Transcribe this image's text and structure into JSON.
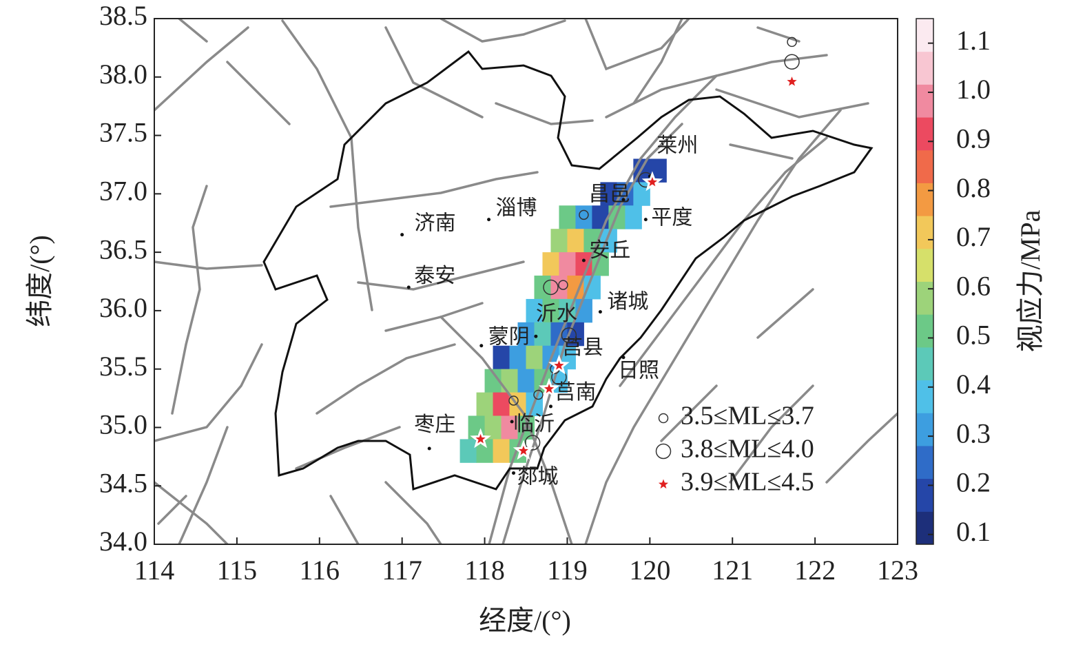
{
  "chart_data": {
    "type": "map",
    "x_label": "经度/(°)",
    "y_label": "纬度/(°)",
    "colorbar_label": "视应力/MPa",
    "xlim": [
      114,
      123
    ],
    "xticks": [
      114,
      115,
      116,
      117,
      118,
      119,
      120,
      121,
      122,
      123
    ],
    "ylim": [
      34,
      38.5
    ],
    "yticks": [
      {
        "value": 34,
        "label": "34.0"
      },
      34.5,
      {
        "value": 35,
        "label": "35.0"
      },
      35.5,
      {
        "value": 36,
        "label": "36.0"
      },
      36.5,
      {
        "value": 37,
        "label": "37.0"
      },
      37.5,
      {
        "value": 38,
        "label": "38.0"
      },
      38.5
    ],
    "colorbar_lim": [
      0.08,
      1.15
    ],
    "colorbar_ticks": [
      0.1,
      0.2,
      0.3,
      0.4,
      0.5,
      0.6,
      0.7,
      0.8,
      0.9,
      {
        "value": 1,
        "label": "1.0"
      },
      1.1
    ],
    "colors": [
      "#1d2f7a",
      "#2546a8",
      "#2f6cc8",
      "#3d9ee0",
      "#4fc0e8",
      "#5cc9b8",
      "#6cc987",
      "#9dd37a",
      "#d6e06a",
      "#f2c85a",
      "#f39a42",
      "#f06a4a",
      "#ec4a60",
      "#f08aa0",
      "#f8c6d2",
      "#fbeaf0"
    ],
    "cells": [
      {
        "lat": 37.2,
        "lons": [
          119.9,
          120.1
        ],
        "values": [
          0.2,
          0.2
        ]
      },
      {
        "lat": 37.0,
        "lons": [
          119.5,
          119.7,
          119.9
        ],
        "values": [
          0.2,
          0.25,
          0.4
        ]
      },
      {
        "lat": 36.8,
        "lons": [
          119.0,
          119.2,
          119.4,
          119.6,
          119.8
        ],
        "values": [
          0.5,
          0.3,
          0.2,
          0.5,
          0.4
        ]
      },
      {
        "lat": 36.6,
        "lons": [
          118.9,
          119.1,
          119.3,
          119.5
        ],
        "values": [
          0.6,
          0.7,
          0.5,
          0.4
        ]
      },
      {
        "lat": 36.4,
        "lons": [
          118.8,
          119.0,
          119.2,
          119.4
        ],
        "values": [
          0.7,
          1.0,
          0.9,
          0.5
        ]
      },
      {
        "lat": 36.2,
        "lons": [
          118.7,
          118.9,
          119.1,
          119.3
        ],
        "values": [
          0.5,
          1.0,
          0.8,
          0.4
        ]
      },
      {
        "lat": 36.0,
        "lons": [
          118.6,
          118.8,
          119.0,
          119.2
        ],
        "values": [
          0.4,
          0.5,
          0.45,
          0.3
        ]
      },
      {
        "lat": 35.8,
        "lons": [
          118.5,
          118.7,
          118.9,
          119.1
        ],
        "values": [
          0.3,
          0.45,
          0.25,
          0.2
        ]
      },
      {
        "lat": 35.6,
        "lons": [
          118.2,
          118.4,
          118.6,
          118.8,
          119.0
        ],
        "values": [
          0.2,
          0.3,
          0.6,
          0.3,
          0.4
        ]
      },
      {
        "lat": 35.4,
        "lons": [
          118.1,
          118.3,
          118.5,
          118.7,
          118.9
        ],
        "values": [
          0.5,
          0.6,
          0.3,
          0.5,
          0.4
        ]
      },
      {
        "lat": 35.2,
        "lons": [
          118.0,
          118.2,
          118.4,
          118.6
        ],
        "values": [
          0.6,
          0.9,
          0.7,
          0.4
        ]
      },
      {
        "lat": 35.0,
        "lons": [
          117.9,
          118.1,
          118.3,
          118.5
        ],
        "values": [
          0.5,
          0.6,
          1.0,
          0.5
        ]
      },
      {
        "lat": 34.8,
        "lons": [
          117.8,
          118.0,
          118.2,
          118.4
        ],
        "values": [
          0.45,
          0.5,
          0.7,
          0.5
        ]
      }
    ],
    "cities": [
      {
        "name": "莱州",
        "lon": 120.0,
        "lat": 37.15
      },
      {
        "name": "昌邑",
        "lon": 119.68,
        "lat": 36.95
      },
      {
        "name": "平度",
        "lon": 119.95,
        "lat": 36.78
      },
      {
        "name": "淄博",
        "lon": 118.05,
        "lat": 36.78
      },
      {
        "name": "济南",
        "lon": 117.0,
        "lat": 36.65
      },
      {
        "name": "泰安",
        "lon": 117.08,
        "lat": 36.2
      },
      {
        "name": "安丘",
        "lon": 119.2,
        "lat": 36.43
      },
      {
        "name": "诸城",
        "lon": 119.4,
        "lat": 35.99
      },
      {
        "name": "沂水",
        "lon": 118.62,
        "lat": 35.78
      },
      {
        "name": "蒙阴",
        "lon": 117.96,
        "lat": 35.7
      },
      {
        "name": "莒县",
        "lon": 118.87,
        "lat": 35.55
      },
      {
        "name": "日照",
        "lon": 119.68,
        "lat": 35.6
      },
      {
        "name": "莒南",
        "lon": 118.8,
        "lat": 35.18
      },
      {
        "name": "临沂",
        "lon": 118.33,
        "lat": 35.05
      },
      {
        "name": "枣庄",
        "lon": 117.33,
        "lat": 34.82
      },
      {
        "name": "郯城",
        "lon": 118.35,
        "lat": 34.61
      }
    ],
    "series": [
      {
        "name": "3.5≤ML≤3.7",
        "marker": "small-circle",
        "lon": [
          119.2,
          118.95,
          118.65,
          118.85,
          117.95,
          118.35,
          121.72
        ],
        "lat": [
          36.82,
          36.22,
          35.28,
          35.5,
          34.9,
          35.23,
          38.3
        ]
      },
      {
        "name": "3.8≤ML≤4.0",
        "marker": "large-circle",
        "lon": [
          119.95,
          119.02,
          118.58,
          121.72,
          118.9,
          118.8
        ],
        "lat": [
          37.12,
          35.79,
          34.87,
          38.13,
          35.43,
          36.2
        ]
      },
      {
        "name": "3.9≤ML≤4.5",
        "marker": "star",
        "color": "#e02020",
        "lon": [
          120.03,
          118.9,
          118.78,
          117.95,
          118.47,
          121.72
        ],
        "lat": [
          37.1,
          35.53,
          35.33,
          34.9,
          34.8,
          37.96
        ]
      }
    ]
  }
}
